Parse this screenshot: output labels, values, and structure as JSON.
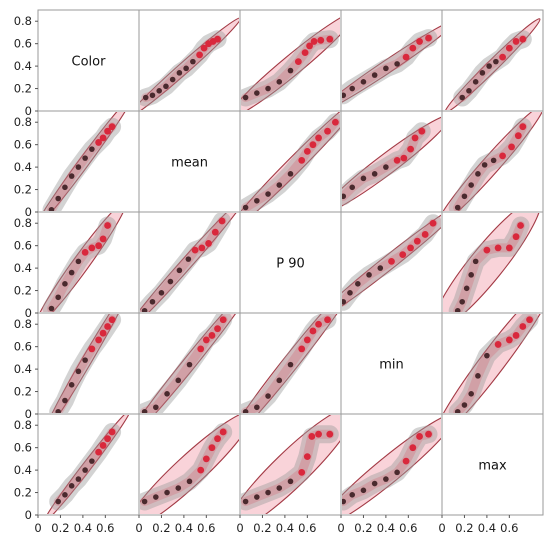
{
  "chart_data": {
    "type": "scatter",
    "subtype": "scatterplot-matrix",
    "variables": [
      "Color",
      "mean",
      "P 90",
      "min",
      "max"
    ],
    "axis_range": [
      0,
      0.9
    ],
    "y_ticks": [
      "0",
      "0.2",
      "0.4",
      "0.6",
      "0.8"
    ],
    "x_ticks": [
      "0",
      "0.2",
      "0.4",
      "0.6"
    ],
    "grid": false,
    "colors": {
      "points_dark": "#4a2a2e",
      "points_red": "#d9283c",
      "density": "#9e9e9e",
      "ellipse_fill": "#f7c4cc",
      "ellipse_stroke": "#a33a45",
      "frame": "#9a9a9a"
    },
    "series": [
      {
        "vars": [
          1,
          0
        ],
        "x": [
          0.06,
          0.12,
          0.18,
          0.24,
          0.3,
          0.36,
          0.42,
          0.48,
          0.54,
          0.58,
          0.62,
          0.66,
          0.7
        ],
        "y": [
          0.12,
          0.14,
          0.18,
          0.22,
          0.28,
          0.34,
          0.38,
          0.44,
          0.5,
          0.56,
          0.6,
          0.62,
          0.64
        ],
        "red_from": 8
      },
      {
        "vars": [
          2,
          0
        ],
        "x": [
          0.05,
          0.15,
          0.25,
          0.35,
          0.45,
          0.52,
          0.58,
          0.62,
          0.66,
          0.72,
          0.8
        ],
        "y": [
          0.12,
          0.16,
          0.2,
          0.26,
          0.36,
          0.44,
          0.52,
          0.58,
          0.62,
          0.63,
          0.64
        ],
        "red_from": 5
      },
      {
        "vars": [
          3,
          0
        ],
        "x": [
          0.02,
          0.1,
          0.2,
          0.3,
          0.4,
          0.5,
          0.58,
          0.64,
          0.7,
          0.78
        ],
        "y": [
          0.14,
          0.2,
          0.26,
          0.32,
          0.38,
          0.42,
          0.48,
          0.56,
          0.62,
          0.65
        ],
        "red_from": 6
      },
      {
        "vars": [
          4,
          0
        ],
        "x": [
          0.18,
          0.24,
          0.3,
          0.36,
          0.42,
          0.48,
          0.54,
          0.6,
          0.66,
          0.72
        ],
        "y": [
          0.12,
          0.18,
          0.26,
          0.34,
          0.4,
          0.44,
          0.48,
          0.56,
          0.62,
          0.64
        ],
        "red_from": 6
      },
      {
        "vars": [
          0,
          1
        ],
        "x": [
          0.12,
          0.18,
          0.24,
          0.3,
          0.36,
          0.42,
          0.48,
          0.54,
          0.58,
          0.62,
          0.66
        ],
        "y": [
          0.02,
          0.12,
          0.22,
          0.32,
          0.4,
          0.48,
          0.56,
          0.62,
          0.66,
          0.72,
          0.76
        ],
        "red_from": 7
      },
      {
        "vars": [
          2,
          1
        ],
        "x": [
          0.05,
          0.15,
          0.25,
          0.35,
          0.45,
          0.55,
          0.6,
          0.65,
          0.7,
          0.78,
          0.85
        ],
        "y": [
          0.04,
          0.1,
          0.16,
          0.24,
          0.34,
          0.46,
          0.54,
          0.6,
          0.66,
          0.72,
          0.8
        ],
        "red_from": 5
      },
      {
        "vars": [
          3,
          1
        ],
        "x": [
          0.02,
          0.1,
          0.2,
          0.3,
          0.4,
          0.5,
          0.56,
          0.62,
          0.66,
          0.72
        ],
        "y": [
          0.14,
          0.22,
          0.3,
          0.34,
          0.4,
          0.46,
          0.48,
          0.56,
          0.66,
          0.72
        ],
        "red_from": 5
      },
      {
        "vars": [
          4,
          1
        ],
        "x": [
          0.14,
          0.2,
          0.26,
          0.32,
          0.38,
          0.46,
          0.54,
          0.62,
          0.68,
          0.72
        ],
        "y": [
          0.04,
          0.14,
          0.24,
          0.34,
          0.42,
          0.46,
          0.5,
          0.58,
          0.68,
          0.76
        ],
        "red_from": 6
      },
      {
        "vars": [
          0,
          2
        ],
        "x": [
          0.12,
          0.18,
          0.24,
          0.3,
          0.36,
          0.42,
          0.48,
          0.54,
          0.58,
          0.62
        ],
        "y": [
          0.04,
          0.14,
          0.26,
          0.36,
          0.46,
          0.54,
          0.58,
          0.6,
          0.66,
          0.78
        ],
        "red_from": 5
      },
      {
        "vars": [
          1,
          2
        ],
        "x": [
          0.05,
          0.12,
          0.2,
          0.28,
          0.36,
          0.44,
          0.5,
          0.56,
          0.62,
          0.68,
          0.74
        ],
        "y": [
          0.02,
          0.1,
          0.18,
          0.28,
          0.38,
          0.48,
          0.56,
          0.58,
          0.62,
          0.72,
          0.82
        ],
        "red_from": 6
      },
      {
        "vars": [
          3,
          2
        ],
        "x": [
          0.02,
          0.08,
          0.15,
          0.25,
          0.35,
          0.45,
          0.55,
          0.62,
          0.68,
          0.75,
          0.82
        ],
        "y": [
          0.1,
          0.18,
          0.26,
          0.34,
          0.4,
          0.46,
          0.52,
          0.58,
          0.64,
          0.7,
          0.8
        ],
        "red_from": 5
      },
      {
        "vars": [
          4,
          2
        ],
        "x": [
          0.14,
          0.18,
          0.22,
          0.26,
          0.3,
          0.4,
          0.5,
          0.6,
          0.66,
          0.7
        ],
        "y": [
          0.02,
          0.1,
          0.22,
          0.34,
          0.46,
          0.56,
          0.58,
          0.58,
          0.68,
          0.78
        ],
        "red_from": 5
      },
      {
        "vars": [
          0,
          3
        ],
        "x": [
          0.18,
          0.24,
          0.3,
          0.36,
          0.42,
          0.48,
          0.54,
          0.58,
          0.62,
          0.66
        ],
        "y": [
          0.02,
          0.12,
          0.26,
          0.38,
          0.48,
          0.58,
          0.66,
          0.72,
          0.78,
          0.84
        ],
        "red_from": 5
      },
      {
        "vars": [
          1,
          3
        ],
        "x": [
          0.05,
          0.15,
          0.25,
          0.35,
          0.45,
          0.55,
          0.6,
          0.65,
          0.7,
          0.75
        ],
        "y": [
          0.02,
          0.06,
          0.18,
          0.3,
          0.44,
          0.58,
          0.66,
          0.7,
          0.76,
          0.84
        ],
        "red_from": 5
      },
      {
        "vars": [
          2,
          3
        ],
        "x": [
          0.05,
          0.15,
          0.25,
          0.35,
          0.45,
          0.55,
          0.6,
          0.65,
          0.7,
          0.78
        ],
        "y": [
          0.02,
          0.06,
          0.16,
          0.3,
          0.44,
          0.58,
          0.66,
          0.74,
          0.8,
          0.84
        ],
        "red_from": 5
      },
      {
        "vars": [
          4,
          3
        ],
        "x": [
          0.14,
          0.2,
          0.26,
          0.32,
          0.4,
          0.5,
          0.6,
          0.66,
          0.72,
          0.78
        ],
        "y": [
          0.02,
          0.08,
          0.18,
          0.34,
          0.52,
          0.62,
          0.66,
          0.7,
          0.78,
          0.84
        ],
        "red_from": 5
      },
      {
        "vars": [
          0,
          4
        ],
        "x": [
          0.18,
          0.24,
          0.3,
          0.36,
          0.42,
          0.48,
          0.54,
          0.58,
          0.62,
          0.66
        ],
        "y": [
          0.12,
          0.18,
          0.26,
          0.32,
          0.4,
          0.48,
          0.56,
          0.62,
          0.68,
          0.74
        ],
        "red_from": 6
      },
      {
        "vars": [
          1,
          4
        ],
        "x": [
          0.05,
          0.15,
          0.25,
          0.35,
          0.45,
          0.55,
          0.6,
          0.65,
          0.7,
          0.75
        ],
        "y": [
          0.12,
          0.16,
          0.2,
          0.24,
          0.3,
          0.4,
          0.5,
          0.6,
          0.68,
          0.74
        ],
        "red_from": 5
      },
      {
        "vars": [
          2,
          4
        ],
        "x": [
          0.05,
          0.15,
          0.25,
          0.35,
          0.45,
          0.55,
          0.6,
          0.64,
          0.7,
          0.8
        ],
        "y": [
          0.12,
          0.16,
          0.2,
          0.24,
          0.3,
          0.38,
          0.52,
          0.7,
          0.72,
          0.72
        ],
        "red_from": 5
      },
      {
        "vars": [
          3,
          4
        ],
        "x": [
          0.02,
          0.1,
          0.2,
          0.3,
          0.4,
          0.5,
          0.58,
          0.64,
          0.7,
          0.78
        ],
        "y": [
          0.12,
          0.18,
          0.22,
          0.28,
          0.32,
          0.38,
          0.48,
          0.6,
          0.7,
          0.72
        ],
        "red_from": 6
      }
    ]
  }
}
